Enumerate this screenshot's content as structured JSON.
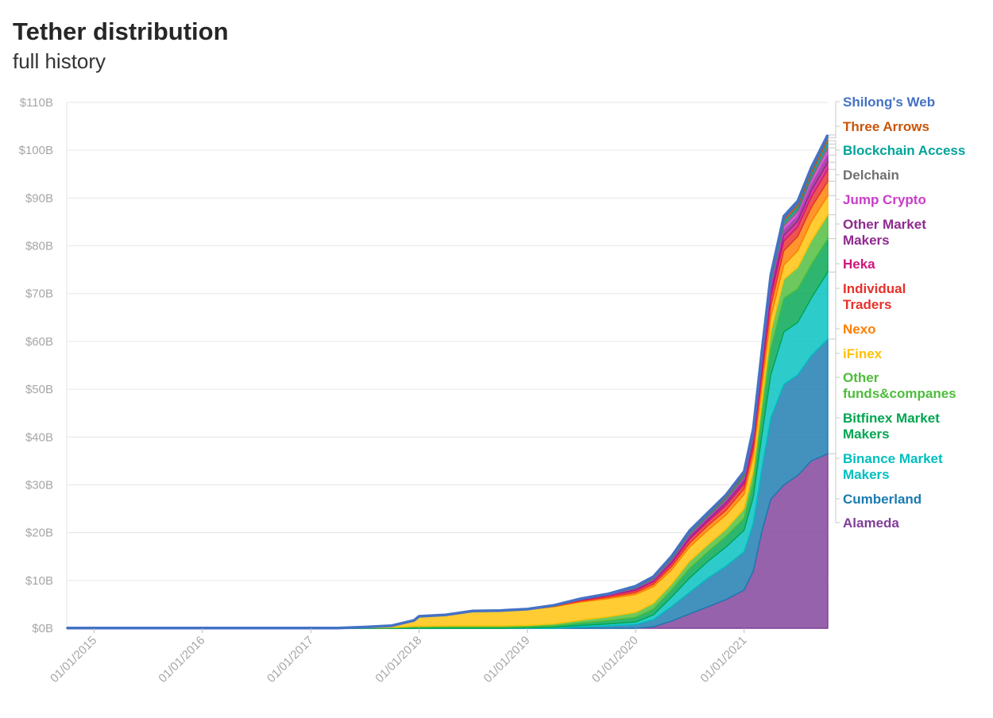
{
  "chart_data": {
    "type": "area",
    "stacked": true,
    "title": "Tether distribution",
    "subtitle": "full history",
    "x": [
      "2014-10-01",
      "2015-01-01",
      "2016-01-01",
      "2017-01-01",
      "2017-04-01",
      "2017-07-01",
      "2017-10-01",
      "2017-12-15",
      "2018-01-01",
      "2018-04-01",
      "2018-07-01",
      "2018-10-01",
      "2019-01-01",
      "2019-04-01",
      "2019-07-01",
      "2019-10-01",
      "2020-01-01",
      "2020-03-01",
      "2020-05-01",
      "2020-07-01",
      "2020-09-01",
      "2020-11-01",
      "2021-01-01",
      "2021-02-01",
      "2021-03-01",
      "2021-04-01",
      "2021-05-15",
      "2021-07-01",
      "2021-08-15",
      "2021-10-10"
    ],
    "x_ticks": [
      "01/01/2015",
      "01/01/2016",
      "01/01/2017",
      "01/01/2018",
      "01/01/2019",
      "01/01/2020",
      "01/01/2021"
    ],
    "x_tick_dates": [
      "2015-01-01",
      "2016-01-01",
      "2017-01-01",
      "2018-01-01",
      "2019-01-01",
      "2020-01-01",
      "2021-01-01"
    ],
    "y_ticks": [
      "$0B",
      "$10B",
      "$20B",
      "$30B",
      "$40B",
      "$50B",
      "$60B",
      "$70B",
      "$80B",
      "$90B",
      "$100B",
      "$110B"
    ],
    "y_tick_values": [
      0,
      10,
      20,
      30,
      40,
      50,
      60,
      70,
      80,
      90,
      100,
      110
    ],
    "ylim": [
      0,
      110
    ],
    "y_unit": "billions of USD",
    "grid": true,
    "legend_position": "right",
    "series": [
      {
        "name": "Alameda",
        "color": "#7f3f98",
        "values": [
          0,
          0,
          0,
          0,
          0,
          0,
          0,
          0,
          0,
          0,
          0,
          0,
          0,
          0,
          0,
          0,
          0,
          0.3,
          1.5,
          3,
          4.5,
          6,
          8,
          12,
          20,
          27,
          30,
          32,
          35,
          36.5
        ]
      },
      {
        "name": "Cumberland",
        "color": "#1a7ab0",
        "values": [
          0,
          0,
          0,
          0,
          0,
          0,
          0,
          0,
          0,
          0,
          0,
          0,
          0,
          0,
          0.3,
          0.5,
          0.8,
          1.5,
          3,
          4.5,
          6,
          7,
          8,
          10,
          13,
          17,
          21,
          21,
          22,
          24
        ]
      },
      {
        "name": "Binance Market Makers",
        "color": "#00bfbf",
        "values": [
          0,
          0,
          0,
          0,
          0,
          0,
          0,
          0,
          0,
          0,
          0,
          0,
          0.1,
          0.2,
          0.3,
          0.4,
          0.5,
          1,
          2,
          3,
          3.5,
          4,
          4.5,
          5.5,
          7,
          9,
          11,
          11,
          12,
          14
        ]
      },
      {
        "name": "Bitfinex Market Makers",
        "color": "#00a651",
        "values": [
          0,
          0,
          0,
          0,
          0,
          0.05,
          0.1,
          0.2,
          0.2,
          0.2,
          0.2,
          0.2,
          0.2,
          0.3,
          0.5,
          0.7,
          1,
          1.2,
          1.5,
          2,
          2,
          2.2,
          2.5,
          3,
          4,
          5.5,
          7,
          7,
          7,
          7
        ]
      },
      {
        "name": "Other funds&companes",
        "color": "#4dbd3a",
        "values": [
          0,
          0,
          0,
          0,
          0,
          0.05,
          0.1,
          0.2,
          0.2,
          0.3,
          0.3,
          0.3,
          0.3,
          0.4,
          0.6,
          0.8,
          1,
          1.2,
          1.2,
          1.5,
          1.5,
          1.5,
          2,
          2.5,
          3,
          3.5,
          4,
          4.5,
          5,
          5
        ]
      },
      {
        "name": "iFinex",
        "color": "#ffc107",
        "values": [
          0,
          0,
          0,
          0,
          0,
          0.1,
          0.3,
          1.2,
          2,
          2.2,
          3,
          3.1,
          3.3,
          3.6,
          3.8,
          3.8,
          3.8,
          3.5,
          3,
          3,
          3,
          3,
          3,
          3,
          3,
          3,
          3,
          3.5,
          4,
          4
        ]
      },
      {
        "name": "Nexo",
        "color": "#ff7f00",
        "values": [
          0,
          0,
          0,
          0,
          0,
          0,
          0,
          0,
          0,
          0,
          0,
          0,
          0,
          0.1,
          0.2,
          0.3,
          0.4,
          0.5,
          0.7,
          0.8,
          1,
          1,
          1.2,
          1.5,
          2,
          2.5,
          3,
          3,
          3,
          3
        ]
      },
      {
        "name": "Individual Traders",
        "color": "#e8302a",
        "values": [
          0,
          0,
          0,
          0,
          0,
          0,
          0,
          0,
          0,
          0,
          0,
          0,
          0,
          0.1,
          0.2,
          0.3,
          0.4,
          0.5,
          0.6,
          0.8,
          0.8,
          1,
          1,
          1.2,
          1.5,
          1.8,
          2,
          2,
          2.2,
          2.5
        ]
      },
      {
        "name": "Heka",
        "color": "#d1157e",
        "values": [
          0,
          0,
          0,
          0,
          0,
          0,
          0,
          0,
          0,
          0,
          0,
          0,
          0,
          0,
          0.1,
          0.1,
          0.2,
          0.2,
          0.3,
          0.4,
          0.4,
          0.5,
          0.5,
          0.6,
          0.8,
          1,
          1.2,
          1.2,
          1.3,
          1.5
        ]
      },
      {
        "name": "Other Market Makers",
        "color": "#8e2a8e",
        "values": [
          0,
          0,
          0,
          0,
          0,
          0,
          0,
          0,
          0,
          0,
          0,
          0,
          0,
          0,
          0.1,
          0.1,
          0.2,
          0.2,
          0.3,
          0.3,
          0.4,
          0.4,
          0.5,
          0.6,
          0.8,
          1,
          1,
          1,
          1.2,
          1.5
        ]
      },
      {
        "name": "Jump Crypto",
        "color": "#c93cc9",
        "values": [
          0,
          0,
          0,
          0,
          0,
          0,
          0,
          0,
          0,
          0,
          0,
          0,
          0,
          0,
          0,
          0.1,
          0.1,
          0.2,
          0.2,
          0.3,
          0.3,
          0.3,
          0.4,
          0.5,
          0.6,
          0.8,
          1,
          1,
          1.2,
          1.5
        ]
      },
      {
        "name": "Delchain",
        "color": "#707070",
        "values": [
          0,
          0,
          0,
          0,
          0,
          0,
          0,
          0,
          0,
          0,
          0,
          0,
          0,
          0,
          0,
          0,
          0.1,
          0.1,
          0.2,
          0.2,
          0.2,
          0.3,
          0.3,
          0.4,
          0.5,
          0.5,
          0.6,
          0.6,
          0.7,
          0.8
        ]
      },
      {
        "name": "Blockchain Access",
        "color": "#00a39a",
        "values": [
          0,
          0,
          0,
          0,
          0,
          0,
          0,
          0,
          0,
          0,
          0,
          0,
          0,
          0,
          0,
          0,
          0.1,
          0.1,
          0.1,
          0.2,
          0.2,
          0.2,
          0.3,
          0.3,
          0.4,
          0.4,
          0.5,
          0.5,
          0.6,
          0.7
        ]
      },
      {
        "name": "Three Arrows",
        "color": "#c8550a",
        "values": [
          0,
          0,
          0,
          0,
          0,
          0,
          0,
          0,
          0,
          0,
          0,
          0,
          0,
          0,
          0,
          0,
          0,
          0.1,
          0.1,
          0.1,
          0.1,
          0.2,
          0.2,
          0.3,
          0.3,
          0.4,
          0.4,
          0.5,
          0.5,
          0.6
        ]
      },
      {
        "name": "Shilong's Web",
        "color": "#4472c4",
        "values": [
          0.05,
          0.05,
          0.05,
          0.05,
          0.05,
          0.05,
          0.05,
          0.05,
          0.1,
          0.1,
          0.1,
          0.1,
          0.1,
          0.1,
          0.1,
          0.1,
          0.2,
          0.2,
          0.3,
          0.3,
          0.3,
          0.3,
          0.4,
          0.4,
          0.5,
          0.5,
          0.5,
          0.6,
          0.6,
          0.6
        ]
      }
    ]
  }
}
